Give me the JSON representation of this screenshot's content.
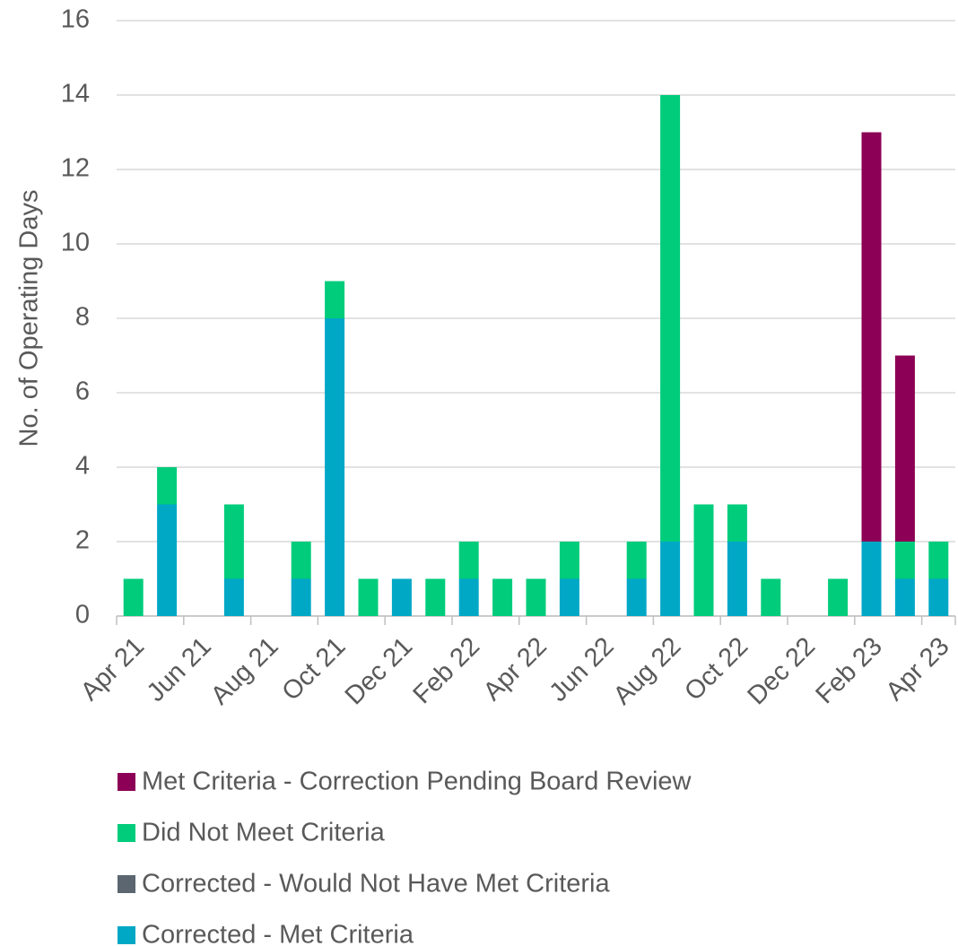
{
  "chart_data": {
    "type": "stacked_bar",
    "y_label": "No. of Operating Days",
    "categories": [
      "Apr 21",
      null,
      "Jun 21",
      null,
      "Aug 21",
      null,
      "Oct 21",
      null,
      "Dec 21",
      null,
      "Feb 22",
      null,
      "Apr 22",
      null,
      "Jun 22",
      null,
      "Aug 22",
      null,
      "Oct 22",
      null,
      "Dec 22",
      null,
      "Feb 23",
      null,
      "Apr 23"
    ],
    "series": [
      {
        "name": "Corrected - Met Criteria",
        "color": "#00a8c6",
        "values": [
          0,
          3,
          0,
          1,
          0,
          1,
          8,
          0,
          1,
          0,
          1,
          0,
          0,
          1,
          0,
          1,
          2,
          0,
          2,
          0,
          0,
          0,
          2,
          1,
          1
        ]
      },
      {
        "name": "Corrected - Would Not Have Met Criteria",
        "color": "#5b6670",
        "values": [
          0,
          0,
          0,
          0,
          0,
          0,
          0,
          0,
          0,
          0,
          0,
          0,
          0,
          0,
          0,
          0,
          0,
          0,
          0,
          0,
          0,
          0,
          0,
          0,
          0
        ]
      },
      {
        "name": "Did Not Meet Criteria",
        "color": "#00cc7c",
        "values": [
          1,
          1,
          0,
          2,
          0,
          1,
          1,
          1,
          0,
          1,
          1,
          1,
          1,
          1,
          0,
          1,
          12,
          3,
          1,
          1,
          0,
          1,
          0,
          1,
          1
        ]
      },
      {
        "name": "Met Criteria - Correction Pending Board Review",
        "color": "#8c0055",
        "values": [
          0,
          0,
          0,
          0,
          0,
          0,
          0,
          0,
          0,
          0,
          0,
          0,
          0,
          0,
          0,
          0,
          0,
          0,
          0,
          0,
          0,
          0,
          11,
          5,
          0
        ]
      }
    ],
    "ylim": [
      0,
      16
    ],
    "yticks": [
      0,
      2,
      4,
      6,
      8,
      10,
      12,
      14,
      16
    ],
    "grid": true
  }
}
